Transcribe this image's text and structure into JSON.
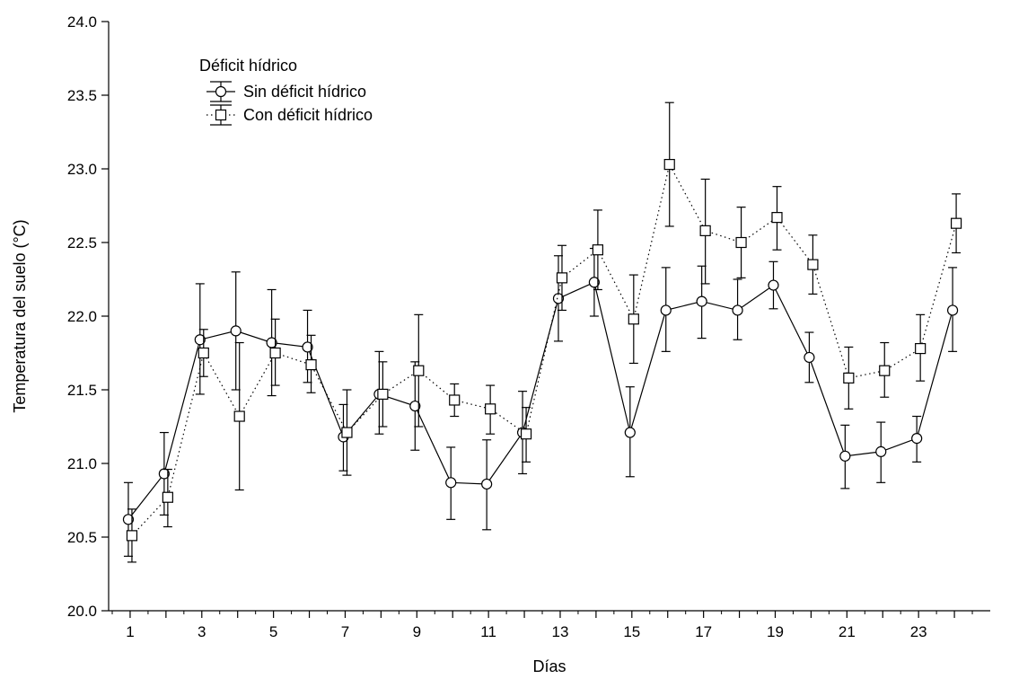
{
  "chart_data": {
    "type": "line",
    "title": "",
    "xlabel": "Días",
    "ylabel": "Temperatura del suelo (°C)",
    "xlim": [
      0.4,
      25
    ],
    "ylim": [
      20.0,
      24.0
    ],
    "x_tick_labels": [
      "1",
      "3",
      "5",
      "7",
      "9",
      "11",
      "13",
      "15",
      "17",
      "19",
      "21",
      "23"
    ],
    "y_tick_labels": [
      "20.0",
      "20.5",
      "21.0",
      "21.5",
      "22.0",
      "22.5",
      "23.0",
      "23.5",
      "24.0"
    ],
    "grid": false,
    "legend": {
      "title": "Déficit hídrico",
      "placement": "top-left"
    },
    "x": [
      1,
      2,
      3,
      4,
      5,
      6,
      7,
      8,
      9,
      10,
      11,
      12,
      13,
      14,
      15,
      16,
      17,
      18,
      19,
      20,
      21,
      22,
      23,
      24
    ],
    "series": [
      {
        "name": "Sin déficit hídrico",
        "marker": "circle",
        "line": "solid",
        "values": [
          20.62,
          20.93,
          21.84,
          21.9,
          21.82,
          21.79,
          21.18,
          21.47,
          21.39,
          20.87,
          20.86,
          21.21,
          22.12,
          22.23,
          21.21,
          22.04,
          22.1,
          22.04,
          22.21,
          21.72,
          21.05,
          21.08,
          21.17,
          22.04
        ],
        "error_low": [
          20.37,
          20.65,
          21.47,
          21.5,
          21.46,
          21.55,
          20.95,
          21.2,
          21.09,
          20.62,
          20.55,
          20.93,
          21.83,
          22.0,
          20.91,
          21.76,
          21.85,
          21.84,
          22.05,
          21.55,
          20.83,
          20.87,
          21.01,
          21.76
        ],
        "error_high": [
          20.87,
          21.21,
          22.22,
          22.3,
          22.18,
          22.04,
          21.4,
          21.76,
          21.69,
          21.11,
          21.16,
          21.49,
          22.41,
          22.46,
          21.52,
          22.33,
          22.34,
          22.25,
          22.37,
          21.89,
          21.26,
          21.28,
          21.32,
          22.33
        ]
      },
      {
        "name": "Con déficit hídrico",
        "marker": "square",
        "line": "dotted",
        "values": [
          20.51,
          20.77,
          21.75,
          21.32,
          21.75,
          21.67,
          21.21,
          21.47,
          21.63,
          21.43,
          21.37,
          21.2,
          22.26,
          22.45,
          21.98,
          23.03,
          22.58,
          22.5,
          22.67,
          22.35,
          21.58,
          21.63,
          21.78,
          22.63
        ],
        "error_low": [
          20.33,
          20.57,
          21.59,
          20.82,
          21.53,
          21.48,
          20.92,
          21.25,
          21.25,
          21.32,
          21.2,
          21.01,
          22.04,
          22.18,
          21.68,
          22.61,
          22.22,
          22.26,
          22.45,
          22.15,
          21.37,
          21.45,
          21.56,
          22.43
        ],
        "error_high": [
          20.69,
          20.96,
          21.91,
          21.82,
          21.98,
          21.87,
          21.5,
          21.69,
          22.01,
          21.54,
          21.53,
          21.38,
          22.48,
          22.72,
          22.28,
          23.45,
          22.93,
          22.74,
          22.88,
          22.55,
          21.79,
          21.82,
          22.01,
          22.83
        ]
      }
    ]
  }
}
